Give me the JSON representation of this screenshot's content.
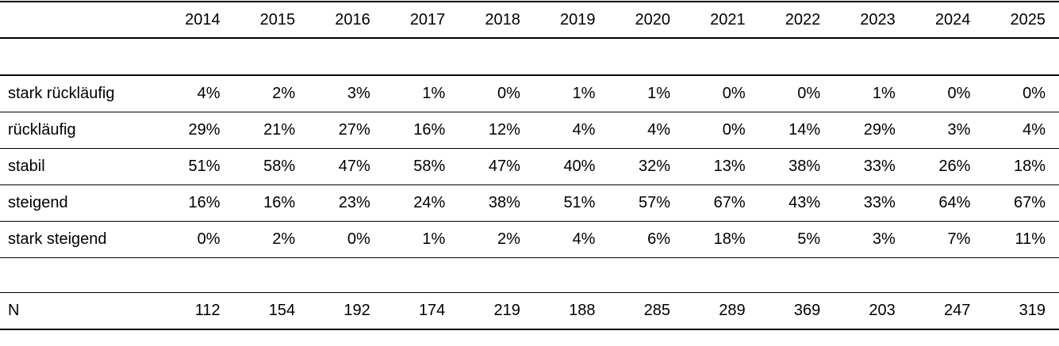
{
  "page": {
    "background": "#ffffff"
  },
  "colors": {
    "text": "#000000",
    "rule": "#000000",
    "background": "#ffffff"
  },
  "table": {
    "corner_label": "",
    "years": [
      "2014",
      "2015",
      "2016",
      "2017",
      "2018",
      "2019",
      "2020",
      "2021",
      "2022",
      "2023",
      "2024",
      "2025"
    ],
    "rows": [
      {
        "label": "stark rückläufig",
        "values": [
          "4%",
          "2%",
          "3%",
          "1%",
          "0%",
          "1%",
          "1%",
          "0%",
          "0%",
          "1%",
          "0%",
          "0%"
        ]
      },
      {
        "label": "rückläufig",
        "values": [
          "29%",
          "21%",
          "27%",
          "16%",
          "12%",
          "4%",
          "4%",
          "0%",
          "14%",
          "29%",
          "3%",
          "4%"
        ]
      },
      {
        "label": "stabil",
        "values": [
          "51%",
          "58%",
          "47%",
          "58%",
          "47%",
          "40%",
          "32%",
          "13%",
          "38%",
          "33%",
          "26%",
          "18%"
        ]
      },
      {
        "label": "steigend",
        "values": [
          "16%",
          "16%",
          "23%",
          "24%",
          "38%",
          "51%",
          "57%",
          "67%",
          "43%",
          "33%",
          "64%",
          "67%"
        ]
      },
      {
        "label": "stark steigend",
        "values": [
          "0%",
          "2%",
          "0%",
          "1%",
          "2%",
          "4%",
          "6%",
          "18%",
          "5%",
          "3%",
          "7%",
          "11%"
        ]
      }
    ],
    "n_row": {
      "label": "N",
      "values": [
        "112",
        "154",
        "192",
        "174",
        "219",
        "188",
        "285",
        "289",
        "369",
        "203",
        "247",
        "319"
      ]
    }
  },
  "chart_data": {
    "type": "table",
    "categories": [
      2014,
      2015,
      2016,
      2017,
      2018,
      2019,
      2020,
      2021,
      2022,
      2023,
      2024,
      2025
    ],
    "series": [
      {
        "name": "stark rückläufig",
        "unit": "%",
        "values": [
          4,
          2,
          3,
          1,
          0,
          1,
          1,
          0,
          0,
          1,
          0,
          0
        ]
      },
      {
        "name": "rückläufig",
        "unit": "%",
        "values": [
          29,
          21,
          27,
          16,
          12,
          4,
          4,
          0,
          14,
          29,
          3,
          4
        ]
      },
      {
        "name": "stabil",
        "unit": "%",
        "values": [
          51,
          58,
          47,
          58,
          47,
          40,
          32,
          13,
          38,
          33,
          26,
          18
        ]
      },
      {
        "name": "steigend",
        "unit": "%",
        "values": [
          16,
          16,
          23,
          24,
          38,
          51,
          57,
          67,
          43,
          33,
          64,
          67
        ]
      },
      {
        "name": "stark steigend",
        "unit": "%",
        "values": [
          0,
          2,
          0,
          1,
          2,
          4,
          6,
          18,
          5,
          3,
          7,
          11
        ]
      },
      {
        "name": "N",
        "unit": "count",
        "values": [
          112,
          154,
          192,
          174,
          219,
          188,
          285,
          289,
          369,
          203,
          247,
          319
        ]
      }
    ],
    "layout": {
      "grid": "horizontal-rules-only",
      "value_alignment": "right",
      "label_column": "left"
    }
  }
}
